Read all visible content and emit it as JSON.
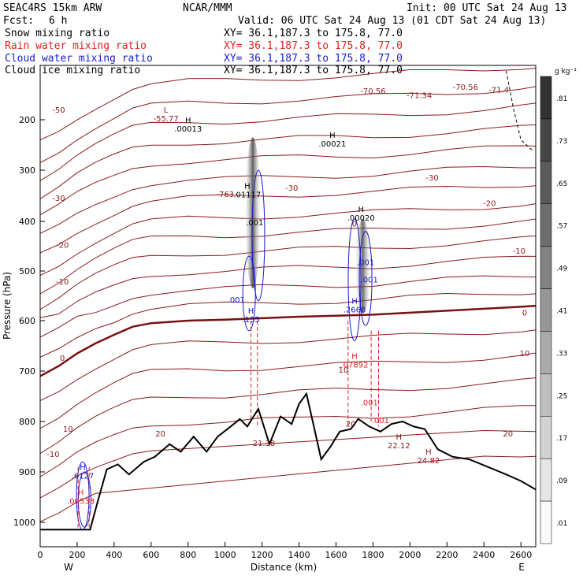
{
  "header": {
    "model": "SEAC4RS 15km ARW",
    "institution": "NCAR/MMM",
    "init": "Init: 00 UTC Sat 24 Aug 13",
    "fcst_label": "Fcst:",
    "fcst_value": "6 h",
    "valid": "Valid: 06 UTC Sat 24 Aug 13 (01 CDT Sat 24 Aug 13)"
  },
  "fields": [
    {
      "label": "Snow mixing ratio",
      "xy": "XY=  36.1,187.3 to 175.8, 77.0",
      "color": "#000000"
    },
    {
      "label": "Rain water mixing ratio",
      "xy": "XY=  36.1,187.3 to 175.8, 77.0",
      "color": "#e02020"
    },
    {
      "label": "Cloud water mixing ratio",
      "xy": "XY=  36.1,187.3 to 175.8, 77.0",
      "color": "#1a1ad0"
    },
    {
      "label": "Cloud ice mixing ratio",
      "xy": "XY=  36.1,187.3 to 175.8, 77.0",
      "color": "#000000"
    }
  ],
  "chart_data": {
    "type": "cross-section",
    "xlabel": "Distance (km)",
    "ylabel": "Pressure (hPa)",
    "xlim": [
      0,
      2680
    ],
    "ylim": [
      1050,
      100
    ],
    "x_ticks": [
      0,
      200,
      400,
      600,
      800,
      1000,
      1200,
      1400,
      1600,
      1800,
      2000,
      2200,
      2400,
      2600
    ],
    "y_ticks": [
      200,
      300,
      400,
      500,
      600,
      700,
      800,
      900,
      1000
    ],
    "x_end_left": "W",
    "x_end_right": "E",
    "colorbar": {
      "unit": "g kg⁻¹",
      "levels": [
        ".81",
        ".73",
        ".65",
        ".57",
        ".49",
        ".41",
        ".33",
        ".25",
        ".17",
        ".09",
        ".01"
      ]
    },
    "temperature_contour_labels": [
      {
        "x": 100,
        "p": 187,
        "text": "-50"
      },
      {
        "x": 2120,
        "p": 320,
        "text": "-30"
      },
      {
        "x": 2430,
        "p": 370,
        "text": "-20"
      },
      {
        "x": 2590,
        "p": 465,
        "text": "-10"
      },
      {
        "x": 2620,
        "p": 590,
        "text": "0"
      },
      {
        "x": 2620,
        "p": 670,
        "text": "10"
      },
      {
        "x": 2530,
        "p": 830,
        "text": "20"
      },
      {
        "x": 100,
        "p": 360,
        "text": "-30"
      },
      {
        "x": 120,
        "p": 453,
        "text": "-20"
      },
      {
        "x": 120,
        "p": 527,
        "text": "-10"
      },
      {
        "x": 120,
        "p": 680,
        "text": "0"
      },
      {
        "x": 150,
        "p": 820,
        "text": "10"
      },
      {
        "x": 70,
        "p": 870,
        "text": "-10"
      },
      {
        "x": 1680,
        "p": 810,
        "text": "20"
      },
      {
        "x": 650,
        "p": 830,
        "text": "20"
      },
      {
        "x": 1360,
        "p": 340,
        "text": "-30"
      },
      {
        "x": 1700,
        "p": 410,
        "text": "0"
      },
      {
        "x": 2480,
        "p": 150,
        "text": "-71.4"
      },
      {
        "x": 2300,
        "p": 145,
        "text": "-70.56"
      },
      {
        "x": 2050,
        "p": 160,
        "text": "-71.34"
      },
      {
        "x": 1800,
        "p": 152,
        "text": "-70.56"
      },
      {
        "x": 1000,
        "p": 352,
        "text": "-763"
      }
    ],
    "extrema_labels": [
      {
        "x": 680,
        "p": 200,
        "mark": "L",
        "value": "-55.77",
        "color": "#8b1a1a"
      },
      {
        "x": 800,
        "p": 220,
        "mark": "H",
        "value": ".00013",
        "color": "#000000"
      },
      {
        "x": 1580,
        "p": 250,
        "mark": "H",
        "value": ".00021",
        "color": "#000000"
      },
      {
        "x": 1120,
        "p": 350,
        "mark": "H",
        "value": ".01117",
        "color": "#000000"
      },
      {
        "x": 1160,
        "p": 405,
        "mark": "",
        "value": ".001",
        "color": "#000000"
      },
      {
        "x": 1735,
        "p": 395,
        "mark": "H",
        "value": ".00020",
        "color": "#000000"
      },
      {
        "x": 1760,
        "p": 485,
        "mark": "",
        "value": ".001",
        "color": "#1a1ad0"
      },
      {
        "x": 1780,
        "p": 520,
        "mark": "",
        "value": ".001",
        "color": "#1a1ad0"
      },
      {
        "x": 1060,
        "p": 560,
        "mark": "",
        "value": ".001",
        "color": "#1a1ad0"
      },
      {
        "x": 1140,
        "p": 600,
        "mark": "H",
        "value": ".135",
        "color": "#1a1ad0"
      },
      {
        "x": 1700,
        "p": 580,
        "mark": "H",
        "value": ".2668",
        "color": "#1a1ad0"
      },
      {
        "x": 1700,
        "p": 690,
        "mark": "H",
        "value": ".07892",
        "color": "#e02020"
      },
      {
        "x": 1640,
        "p": 700,
        "mark": "",
        "value": "10",
        "color": "#8b1a1a"
      },
      {
        "x": 1780,
        "p": 765,
        "mark": "",
        "value": ".001",
        "color": "#e02020"
      },
      {
        "x": 1840,
        "p": 800,
        "mark": "",
        "value": ".001",
        "color": "#e02020"
      },
      {
        "x": 1210,
        "p": 845,
        "mark": "",
        "value": "21.38",
        "color": "#8b1a1a"
      },
      {
        "x": 1940,
        "p": 850,
        "mark": "H",
        "value": "22.12",
        "color": "#8b1a1a"
      },
      {
        "x": 2100,
        "p": 880,
        "mark": "H",
        "value": "24.82",
        "color": "#8b1a1a"
      },
      {
        "x": 230,
        "p": 910,
        "mark": "H",
        "value": ".6127",
        "color": "#1a1ad0"
      },
      {
        "x": 220,
        "p": 960,
        "mark": "H",
        "value": ".00533",
        "color": "#e02020"
      }
    ],
    "terrain_pressure": [
      {
        "x": 0,
        "p": 1015
      },
      {
        "x": 270,
        "p": 1015
      },
      {
        "x": 310,
        "p": 960
      },
      {
        "x": 360,
        "p": 895
      },
      {
        "x": 420,
        "p": 885
      },
      {
        "x": 480,
        "p": 905
      },
      {
        "x": 560,
        "p": 880
      },
      {
        "x": 620,
        "p": 870
      },
      {
        "x": 700,
        "p": 845
      },
      {
        "x": 760,
        "p": 860
      },
      {
        "x": 830,
        "p": 830
      },
      {
        "x": 900,
        "p": 860
      },
      {
        "x": 960,
        "p": 830
      },
      {
        "x": 1030,
        "p": 810
      },
      {
        "x": 1080,
        "p": 795
      },
      {
        "x": 1120,
        "p": 810
      },
      {
        "x": 1180,
        "p": 775
      },
      {
        "x": 1240,
        "p": 845
      },
      {
        "x": 1300,
        "p": 790
      },
      {
        "x": 1360,
        "p": 805
      },
      {
        "x": 1400,
        "p": 765
      },
      {
        "x": 1440,
        "p": 745
      },
      {
        "x": 1480,
        "p": 810
      },
      {
        "x": 1520,
        "p": 875
      },
      {
        "x": 1570,
        "p": 850
      },
      {
        "x": 1620,
        "p": 820
      },
      {
        "x": 1680,
        "p": 815
      },
      {
        "x": 1720,
        "p": 795
      },
      {
        "x": 1780,
        "p": 810
      },
      {
        "x": 1840,
        "p": 820
      },
      {
        "x": 1900,
        "p": 805
      },
      {
        "x": 1960,
        "p": 800
      },
      {
        "x": 2020,
        "p": 810
      },
      {
        "x": 2080,
        "p": 815
      },
      {
        "x": 2150,
        "p": 855
      },
      {
        "x": 2230,
        "p": 870
      },
      {
        "x": 2320,
        "p": 875
      },
      {
        "x": 2420,
        "p": 890
      },
      {
        "x": 2520,
        "p": 905
      },
      {
        "x": 2600,
        "p": 918
      },
      {
        "x": 2680,
        "p": 935
      }
    ],
    "freezing_level": [
      {
        "x": 0,
        "p": 710
      },
      {
        "x": 100,
        "p": 690
      },
      {
        "x": 200,
        "p": 665
      },
      {
        "x": 300,
        "p": 645
      },
      {
        "x": 400,
        "p": 628
      },
      {
        "x": 500,
        "p": 612
      },
      {
        "x": 600,
        "p": 605
      },
      {
        "x": 800,
        "p": 600
      },
      {
        "x": 1000,
        "p": 598
      },
      {
        "x": 1200,
        "p": 595
      },
      {
        "x": 1400,
        "p": 592
      },
      {
        "x": 1600,
        "p": 590
      },
      {
        "x": 1800,
        "p": 588
      },
      {
        "x": 2000,
        "p": 584
      },
      {
        "x": 2200,
        "p": 580
      },
      {
        "x": 2400,
        "p": 576
      },
      {
        "x": 2600,
        "p": 572
      },
      {
        "x": 2680,
        "p": 570
      }
    ],
    "snow_columns": [
      {
        "x": 1150,
        "p_top": 235,
        "p_bottom": 535,
        "peak": 0.81
      },
      {
        "x": 1745,
        "p_top": 395,
        "p_bottom": 585,
        "peak": 0.73
      }
    ],
    "colors": {
      "temperature": "#8b1a1a",
      "freezing_level": "#7a1010",
      "terrain": "#000000",
      "rain": "#e02020",
      "cloud": "#1a1ad0"
    }
  }
}
